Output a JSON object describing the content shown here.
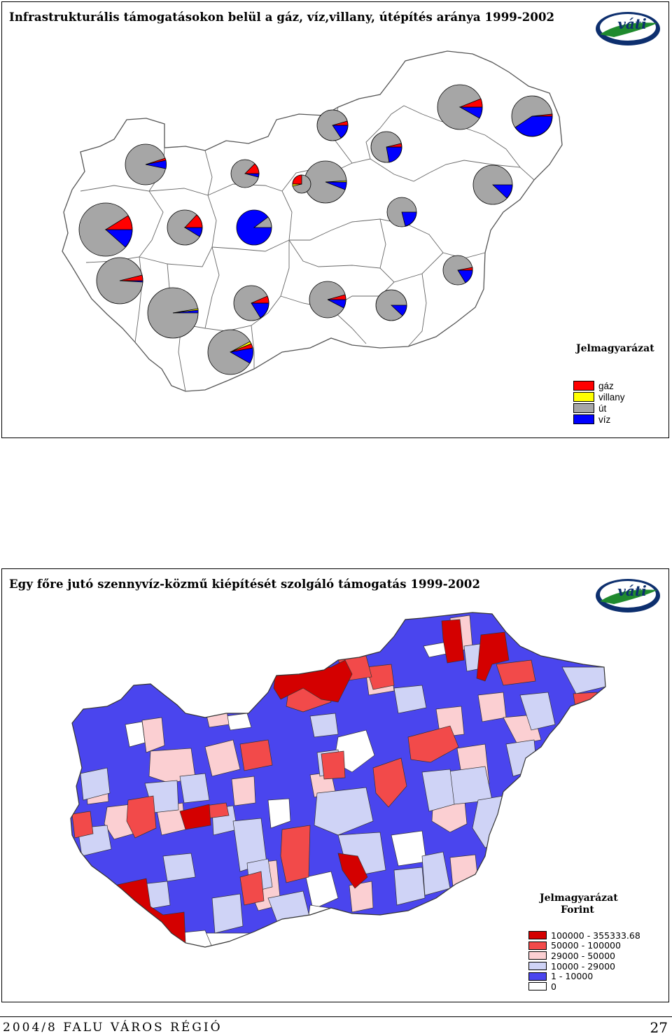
{
  "map1": {
    "title": "Infrastrukturális támogatásokon belül a gáz, víz,villany, útépítés aránya 1999-2002",
    "logo_text": "váti",
    "legend": {
      "title": "Jelmagyarázat",
      "items": [
        {
          "label": "gáz",
          "color": "#ff0000"
        },
        {
          "label": "villany",
          "color": "#ffff00"
        },
        {
          "label": "út",
          "color": "#a6a6a6"
        },
        {
          "label": "víz",
          "color": "#0000ff"
        }
      ]
    }
  },
  "map2": {
    "title": "Egy főre jutó szennyvíz-közmű kiépítését szolgáló támogatás 1999-2002",
    "logo_text": "váti",
    "legend": {
      "title": "Jelmagyarázat",
      "subtitle": "Forint",
      "items": [
        {
          "label": "100000 - 355333.68",
          "color": "#d40000"
        },
        {
          "label": "50000 - 100000",
          "color": "#f24a4a"
        },
        {
          "label": "29000 - 50000",
          "color": "#fbcfd2"
        },
        {
          "label": "10000 - 29000",
          "color": "#cfd3f6"
        },
        {
          "label": "1 - 10000",
          "color": "#4a45ee"
        },
        {
          "label": "0",
          "color": "#ffffff"
        }
      ]
    }
  },
  "footer": {
    "publication": "2004/8 FALU VÁROS RÉGIÓ",
    "page_number": "27"
  }
}
